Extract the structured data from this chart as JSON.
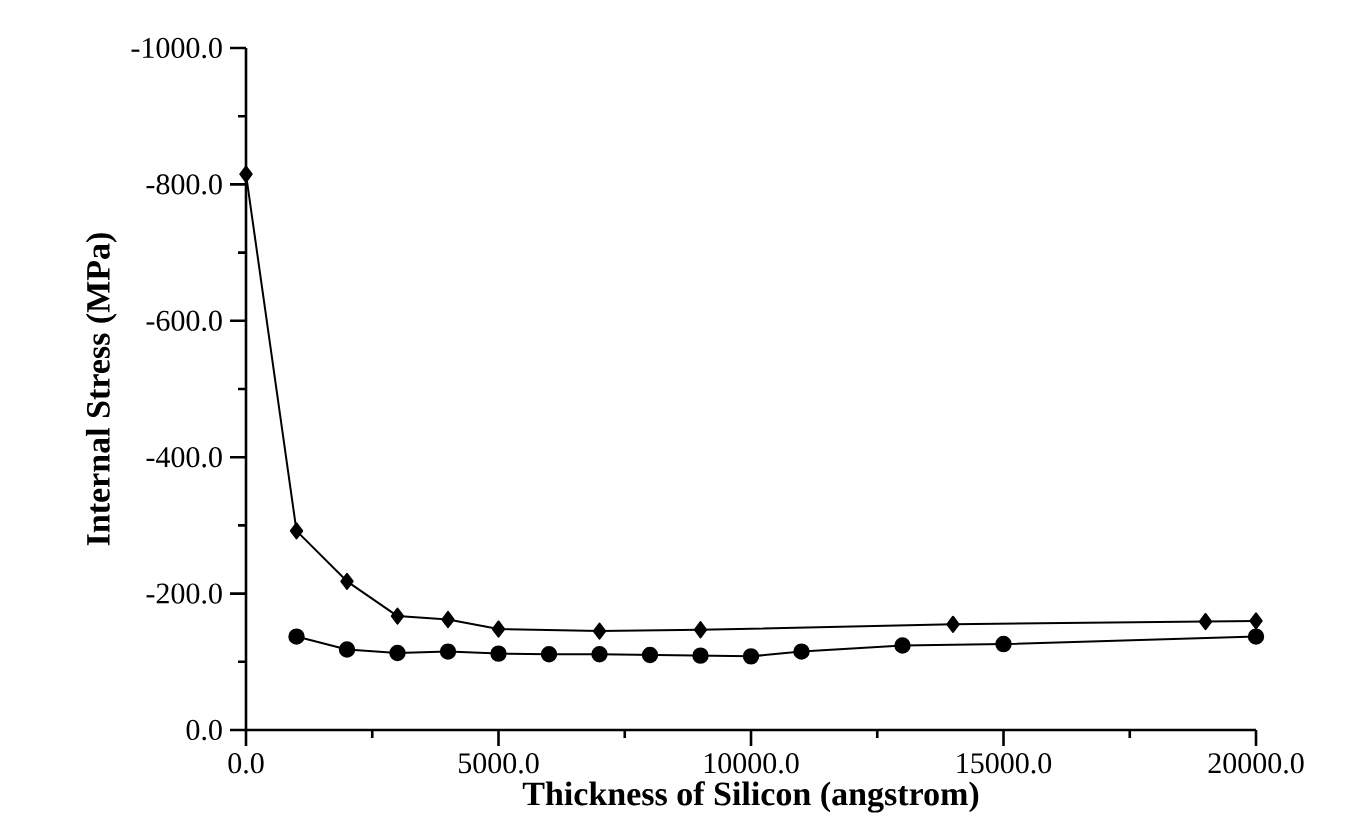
{
  "chart_data": {
    "type": "line",
    "xlabel": "Thickness of Silicon (angstrom)",
    "ylabel": "Internal Stress (MPa)",
    "xlim": [
      0,
      20000
    ],
    "ylim": [
      0,
      -1000
    ],
    "xticks": [
      {
        "value": 0,
        "label": "0.0"
      },
      {
        "value": 5000,
        "label": "5000.0"
      },
      {
        "value": 10000,
        "label": "10000.0"
      },
      {
        "value": 15000,
        "label": "15000.0"
      },
      {
        "value": 20000,
        "label": "20000.0"
      }
    ],
    "yticks": [
      {
        "value": 0,
        "label": "0.0"
      },
      {
        "value": -200,
        "label": "-200.0"
      },
      {
        "value": -400,
        "label": "-400.0"
      },
      {
        "value": -600,
        "label": "-600.0"
      },
      {
        "value": -800,
        "label": "-800.0"
      },
      {
        "value": -1000,
        "label": "-1000.0"
      }
    ],
    "grid": false,
    "line_style": "solid",
    "series": [
      {
        "color": "#000000",
        "marker": "diamond",
        "x": [
          0,
          1000,
          2000,
          3000,
          4000,
          5000,
          7000,
          9000,
          14000,
          19000,
          20000
        ],
        "values": [
          -815,
          -292,
          -218,
          -167,
          -162,
          -148,
          -145,
          -147,
          -155,
          -159,
          -160
        ]
      },
      {
        "color": "#000000",
        "marker": "circle",
        "x": [
          1000,
          2000,
          3000,
          4000,
          5000,
          6000,
          7000,
          8000,
          9000,
          10000,
          11000,
          13000,
          15000,
          20000
        ],
        "values": [
          -137,
          -118,
          -113,
          -115,
          -112,
          -111,
          -111,
          -110,
          -109,
          -108,
          -115,
          -124,
          -126,
          -137
        ]
      }
    ]
  }
}
